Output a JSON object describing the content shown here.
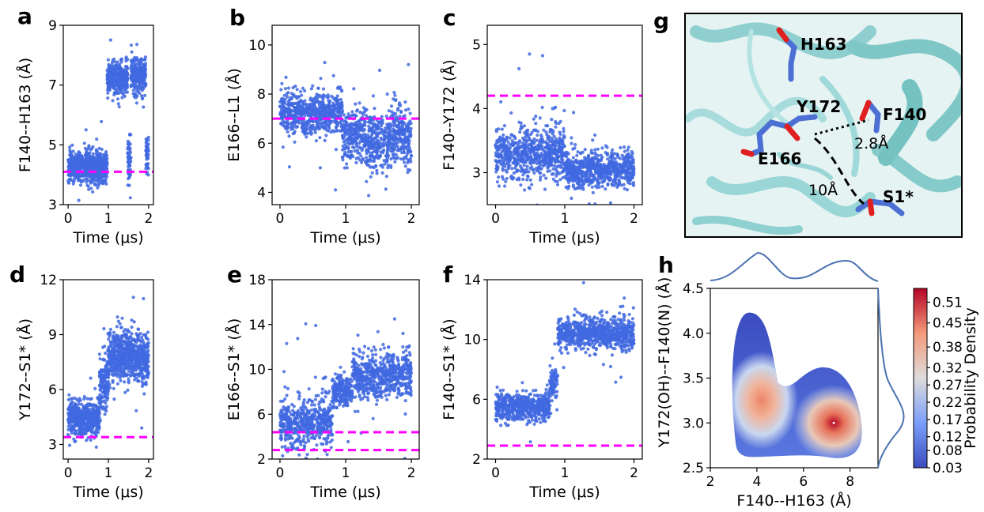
{
  "chart_data": [
    {
      "panel": "a",
      "type": "scatter",
      "xlabel": "Time (μs)",
      "ylabel": "F140--H163 (Å)",
      "xlim": [
        -0.12,
        2.12
      ],
      "ylim": [
        3,
        9
      ],
      "xticks": [
        "0",
        "1",
        "2"
      ],
      "yticks": [
        "3",
        "5",
        "7",
        "9"
      ],
      "reference_lines": [
        4.1
      ],
      "point_color": "#4169e1",
      "reference_color": "#ff00ff",
      "series": [
        {
          "x0": 0.0,
          "x1": 0.97,
          "mean": 4.25,
          "spread": 0.45
        },
        {
          "x0": 0.97,
          "x1": 1.48,
          "mean": 7.2,
          "spread": 0.5
        },
        {
          "x0": 1.48,
          "x1": 1.56,
          "mean": 4.6,
          "spread": 0.8
        },
        {
          "x0": 1.56,
          "x1": 1.93,
          "mean": 7.35,
          "spread": 0.55
        },
        {
          "x0": 1.93,
          "x1": 2.0,
          "mean": 4.6,
          "spread": 0.6
        }
      ]
    },
    {
      "panel": "b",
      "type": "scatter",
      "xlabel": "Time (μs)",
      "ylabel": "E166--L1 (Å)",
      "xlim": [
        -0.12,
        2.12
      ],
      "ylim": [
        3.5,
        10.8
      ],
      "xticks": [
        "0",
        "1",
        "2"
      ],
      "yticks": [
        "4",
        "6",
        "8",
        "10"
      ],
      "reference_lines": [
        7.0
      ],
      "point_color": "#4169e1",
      "reference_color": "#ff00ff",
      "series": [
        {
          "x0": 0.0,
          "x1": 0.95,
          "mean": 7.2,
          "spread": 0.75
        },
        {
          "x0": 0.95,
          "x1": 1.3,
          "mean": 6.4,
          "spread": 0.9
        },
        {
          "x0": 1.3,
          "x1": 1.65,
          "mean": 6.0,
          "spread": 1.1
        },
        {
          "x0": 1.65,
          "x1": 2.0,
          "mean": 6.3,
          "spread": 1.1
        }
      ]
    },
    {
      "panel": "c",
      "type": "scatter",
      "xlabel": "Time (μs)",
      "ylabel": "F140--Y172 (Å)",
      "xlim": [
        -0.12,
        2.12
      ],
      "ylim": [
        2.5,
        5.3
      ],
      "xticks": [
        "0",
        "1",
        "2"
      ],
      "yticks": [
        "3",
        "4",
        "5"
      ],
      "reference_lines": [
        4.2
      ],
      "point_color": "#4169e1",
      "reference_color": "#ff00ff",
      "series": [
        {
          "x0": 0.0,
          "x1": 1.0,
          "mean": 3.3,
          "spread": 0.35
        },
        {
          "x0": 1.0,
          "x1": 2.0,
          "mean": 3.05,
          "spread": 0.25
        }
      ]
    },
    {
      "panel": "d",
      "type": "scatter",
      "xlabel": "Time (μs)",
      "ylabel": "Y172--S1* (Å)",
      "xlim": [
        -0.12,
        2.12
      ],
      "ylim": [
        2.2,
        12
      ],
      "xticks": [
        "0",
        "1",
        "2"
      ],
      "yticks": [
        "3",
        "6",
        "9",
        "12"
      ],
      "reference_lines": [
        3.4
      ],
      "point_color": "#4169e1",
      "reference_color": "#ff00ff",
      "series": [
        {
          "x0": 0.0,
          "x1": 0.78,
          "mean": 4.4,
          "spread": 0.8
        },
        {
          "x0": 0.78,
          "x1": 1.0,
          "mean": 6.5,
          "spread": 1.4
        },
        {
          "x0": 1.0,
          "x1": 2.0,
          "mean": 7.8,
          "spread": 1.2
        }
      ]
    },
    {
      "panel": "e",
      "type": "scatter",
      "xlabel": "Time (μs)",
      "ylabel": "E166--S1* (Å)",
      "xlim": [
        -0.12,
        2.12
      ],
      "ylim": [
        2,
        18
      ],
      "xticks": [
        "0",
        "1",
        "2"
      ],
      "yticks": [
        "2",
        "6",
        "10",
        "14",
        "18"
      ],
      "reference_lines": [
        4.4,
        2.8
      ],
      "point_color": "#4169e1",
      "reference_color": "#ff00ff",
      "series": [
        {
          "x0": 0.0,
          "x1": 0.8,
          "mean": 5.2,
          "spread": 2.0
        },
        {
          "x0": 0.8,
          "x1": 1.1,
          "mean": 8.0,
          "spread": 1.2
        },
        {
          "x0": 1.1,
          "x1": 2.0,
          "mean": 9.5,
          "spread": 1.8
        }
      ]
    },
    {
      "panel": "f",
      "type": "scatter",
      "xlabel": "Time (μs)",
      "ylabel": "F140--S1* (Å)",
      "xlim": [
        -0.12,
        2.12
      ],
      "ylim": [
        2,
        14
      ],
      "xticks": [
        "0",
        "1",
        "2"
      ],
      "yticks": [
        "2",
        "6",
        "10",
        "14"
      ],
      "reference_lines": [
        2.9
      ],
      "point_color": "#4169e1",
      "reference_color": "#ff00ff",
      "series": [
        {
          "x0": 0.0,
          "x1": 0.78,
          "mean": 5.5,
          "spread": 0.8
        },
        {
          "x0": 0.78,
          "x1": 0.9,
          "mean": 7.0,
          "spread": 1.0
        },
        {
          "x0": 0.9,
          "x1": 2.0,
          "mean": 10.4,
          "spread": 0.9
        }
      ]
    },
    {
      "panel": "h",
      "type": "heatmap",
      "xlabel": "F140--H163 (Å)",
      "ylabel": "Y172(OH)--F140(N) (Å)",
      "xlim": [
        2,
        9.2
      ],
      "ylim": [
        2.5,
        4.5
      ],
      "xticks": [
        "2",
        "4",
        "6",
        "8"
      ],
      "yticks": [
        "2.5",
        "3.0",
        "3.5",
        "4.0",
        "4.5"
      ],
      "colorbar_label": "Probability Density",
      "colorbar_ticks": [
        "0.03",
        "0.08",
        "0.12",
        "0.17",
        "0.22",
        "0.27",
        "0.32",
        "0.38",
        "0.45",
        "0.51"
      ],
      "colorbar_min": 0.03,
      "colorbar_max": 0.55,
      "peaks": [
        {
          "x": 4.2,
          "y": 3.25,
          "density": 0.45
        },
        {
          "x": 7.3,
          "y": 3.0,
          "density": 0.55
        }
      ]
    }
  ],
  "structure": {
    "panel": "g",
    "residues": [
      "H163",
      "Y172",
      "F140",
      "E166",
      "S1*"
    ],
    "distances": [
      "2.8Å",
      "10Å"
    ]
  },
  "panel_labels": [
    "a",
    "b",
    "c",
    "d",
    "e",
    "f",
    "g",
    "h"
  ]
}
